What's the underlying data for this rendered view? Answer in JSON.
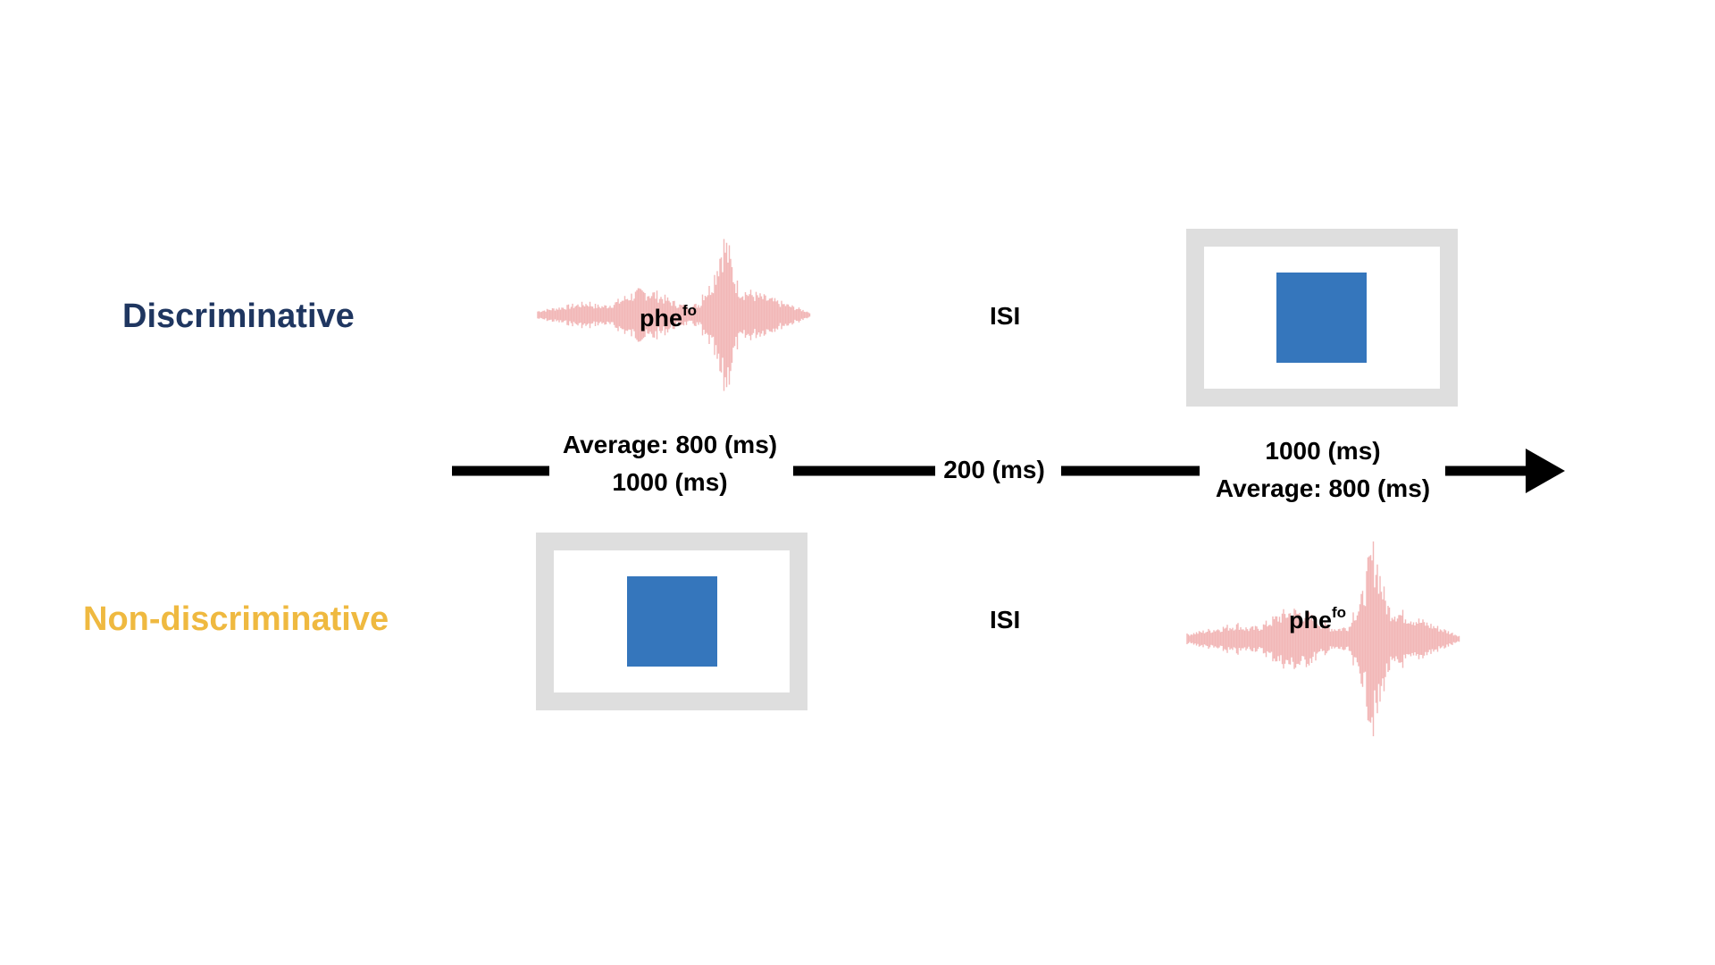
{
  "conditions": {
    "discriminative": "Discriminative",
    "non_discriminative": "Non-discriminative"
  },
  "isi": {
    "top": "ISI",
    "bottom": "ISI"
  },
  "stimulus": {
    "syllable_base": "phe",
    "syllable_superscript": "fo"
  },
  "timing": {
    "first_line1": "Average: 800 (ms)",
    "first_line2": "1000 (ms)",
    "isi_duration": "200 (ms)",
    "second_line1": "1000 (ms)",
    "second_line2": "Average: 800 (ms)"
  },
  "colors": {
    "discriminative": "#1f3660",
    "non_discriminative": "#efb940",
    "square": "#3576bc",
    "frame": "#dedede",
    "waveform": "#f2b7b7"
  }
}
